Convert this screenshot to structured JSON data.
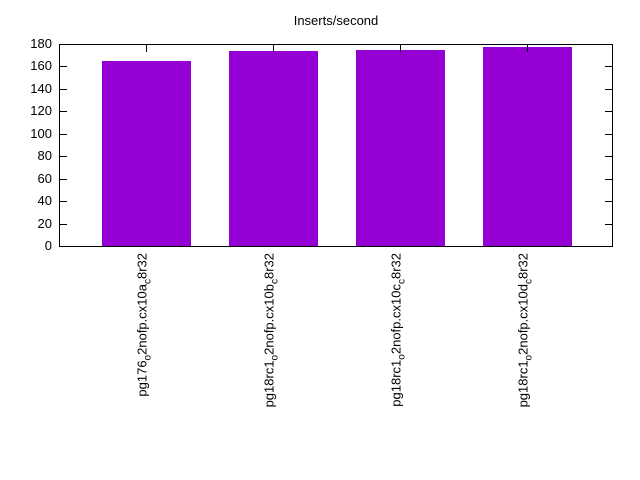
{
  "chart_data": {
    "type": "bar",
    "title": "Inserts/second",
    "xlabel": "",
    "ylabel": "",
    "ylim": [
      0,
      180
    ],
    "yticks": [
      0,
      20,
      40,
      60,
      80,
      100,
      120,
      140,
      160,
      180
    ],
    "grid": false,
    "legend": "none",
    "bar_color": "#9400d3",
    "axis_color": "#000000",
    "background_color": "#ffffff",
    "x_tick_label_rotation": -90,
    "categories": [
      {
        "text": "pg176o2nofp.cx10ac8r32",
        "segments": [
          {
            "text": "pg176",
            "sub": false
          },
          {
            "text": "o",
            "sub": true
          },
          {
            "text": "2nofp.cx10a",
            "sub": false
          },
          {
            "text": "c",
            "sub": true
          },
          {
            "text": "8r32",
            "sub": false
          }
        ]
      },
      {
        "text": "pg18rc1o2nofp.cx10bc8r32",
        "segments": [
          {
            "text": "pg18rc1",
            "sub": false
          },
          {
            "text": "o",
            "sub": true
          },
          {
            "text": "2nofp.cx10b",
            "sub": false
          },
          {
            "text": "c",
            "sub": true
          },
          {
            "text": "8r32",
            "sub": false
          }
        ]
      },
      {
        "text": "pg18rc1o2nofp.cx10cc8r32",
        "segments": [
          {
            "text": "pg18rc1",
            "sub": false
          },
          {
            "text": "o",
            "sub": true
          },
          {
            "text": "2nofp.cx10c",
            "sub": false
          },
          {
            "text": "c",
            "sub": true
          },
          {
            "text": "8r32",
            "sub": false
          }
        ]
      },
      {
        "text": "pg18rc1o2nofp.cx10dc8r32",
        "segments": [
          {
            "text": "pg18rc1",
            "sub": false
          },
          {
            "text": "o",
            "sub": true
          },
          {
            "text": "2nofp.cx10d",
            "sub": false
          },
          {
            "text": "c",
            "sub": true
          },
          {
            "text": "8r32",
            "sub": false
          }
        ]
      }
    ],
    "values": [
      165,
      174,
      175,
      177
    ]
  }
}
